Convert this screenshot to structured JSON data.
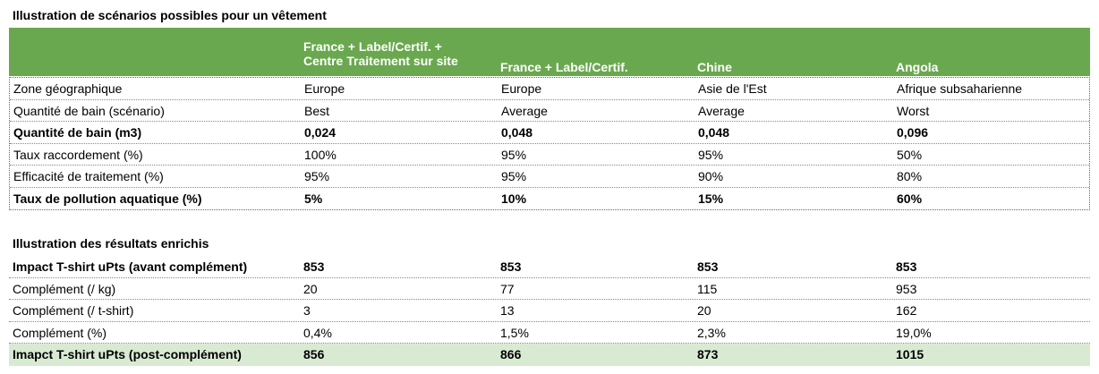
{
  "section1": {
    "title": "Illustration de scénarios possibles pour un vêtement",
    "headers": [
      "",
      "France + Label/Certif. + Centre Traitement sur site",
      "France + Label/Certif.",
      "Chine",
      "Angola"
    ],
    "header_lines": [
      [
        "France + Label/Certif. +",
        "Centre Traitement sur site"
      ],
      [
        "France + Label/Certif."
      ],
      [
        "Chine"
      ],
      [
        "Angola"
      ]
    ],
    "rows": [
      {
        "label": "Zone géographique",
        "values": [
          "Europe",
          "Europe",
          "Asie de l'Est",
          "Afrique subsaharienne"
        ],
        "bold": false
      },
      {
        "label": "Quantité de bain (scénario)",
        "values": [
          "Best",
          "Average",
          "Average",
          "Worst"
        ],
        "bold": false
      },
      {
        "label": "Quantité de bain (m3)",
        "values": [
          "0,024",
          "0,048",
          "0,048",
          "0,096"
        ],
        "bold": true
      },
      {
        "label": "Taux raccordement (%)",
        "values": [
          "100%",
          "95%",
          "95%",
          "50%"
        ],
        "bold": false
      },
      {
        "label": "Efficacité de traitement (%)",
        "values": [
          "95%",
          "95%",
          "90%",
          "80%"
        ],
        "bold": false
      },
      {
        "label": "Taux de pollution aquatique (%)",
        "values": [
          "5%",
          "10%",
          "15%",
          "60%"
        ],
        "bold": true
      }
    ]
  },
  "section2": {
    "title": "Illustration des résultats enrichis",
    "rows": [
      {
        "label": "Impact T-shirt uPts (avant complément)",
        "values": [
          "853",
          "853",
          "853",
          "853"
        ],
        "bold": true
      },
      {
        "label": "Complément (/ kg)",
        "values": [
          "20",
          "77",
          "115",
          "953"
        ],
        "bold": false
      },
      {
        "label": "Complément (/ t-shirt)",
        "values": [
          "3",
          "13",
          "20",
          "162"
        ],
        "bold": false
      },
      {
        "label": "Complément (%)",
        "values": [
          "0,4%",
          "1,5%",
          "2,3%",
          "19,0%"
        ],
        "bold": false
      },
      {
        "label": "Imapct T-shirt uPts  (post-complément)",
        "values": [
          "856",
          "866",
          "873",
          "1015"
        ],
        "bold": true,
        "highlight": true
      }
    ]
  },
  "colors": {
    "header_green": "#6aa84f",
    "highlight_green": "#d9ead3"
  }
}
